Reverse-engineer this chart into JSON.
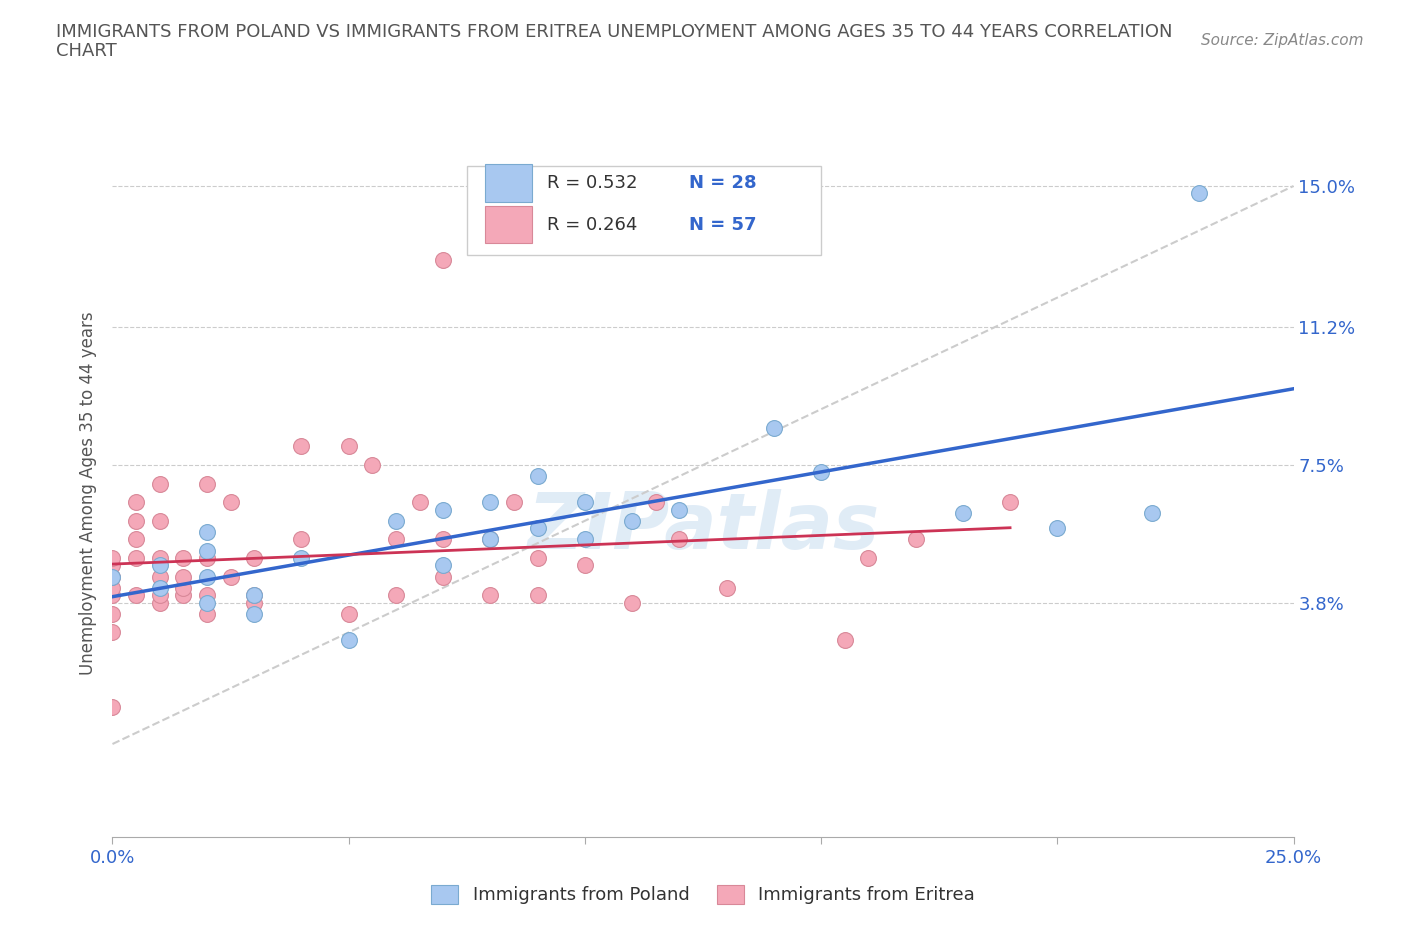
{
  "title_line1": "IMMIGRANTS FROM POLAND VS IMMIGRANTS FROM ERITREA UNEMPLOYMENT AMONG AGES 35 TO 44 YEARS CORRELATION",
  "title_line2": "CHART",
  "source_text": "Source: ZipAtlas.com",
  "ylabel": "Unemployment Among Ages 35 to 44 years",
  "xlim": [
    0.0,
    0.25
  ],
  "ylim": [
    -0.025,
    0.16
  ],
  "ytick_positions": [
    0.038,
    0.075,
    0.112,
    0.15
  ],
  "ytick_labels": [
    "3.8%",
    "7.5%",
    "11.2%",
    "15.0%"
  ],
  "watermark": "ZIPatlas",
  "poland_color": "#a8c8f0",
  "poland_edge": "#7aaad0",
  "eritrea_color": "#f4a8b8",
  "eritrea_edge": "#d88898",
  "poland_line_color": "#3366cc",
  "eritrea_line_color": "#cc3355",
  "diagonal_color": "#cccccc",
  "legend_text_color": "#333333",
  "legend_N_color": "#3366cc",
  "poland_x": [
    0.0,
    0.01,
    0.01,
    0.02,
    0.02,
    0.02,
    0.02,
    0.03,
    0.03,
    0.04,
    0.05,
    0.06,
    0.07,
    0.07,
    0.08,
    0.08,
    0.09,
    0.09,
    0.1,
    0.1,
    0.11,
    0.12,
    0.14,
    0.15,
    0.18,
    0.2,
    0.22,
    0.23
  ],
  "poland_y": [
    0.045,
    0.042,
    0.048,
    0.038,
    0.045,
    0.052,
    0.057,
    0.04,
    0.035,
    0.05,
    0.028,
    0.06,
    0.048,
    0.063,
    0.055,
    0.065,
    0.058,
    0.072,
    0.055,
    0.065,
    0.06,
    0.063,
    0.085,
    0.073,
    0.062,
    0.058,
    0.062,
    0.148
  ],
  "eritrea_x": [
    0.0,
    0.0,
    0.0,
    0.0,
    0.0,
    0.0,
    0.0,
    0.0,
    0.005,
    0.005,
    0.005,
    0.005,
    0.005,
    0.01,
    0.01,
    0.01,
    0.01,
    0.01,
    0.01,
    0.015,
    0.015,
    0.015,
    0.015,
    0.02,
    0.02,
    0.02,
    0.02,
    0.025,
    0.025,
    0.03,
    0.03,
    0.03,
    0.04,
    0.04,
    0.05,
    0.05,
    0.055,
    0.06,
    0.06,
    0.065,
    0.07,
    0.07,
    0.07,
    0.08,
    0.08,
    0.085,
    0.09,
    0.09,
    0.1,
    0.11,
    0.115,
    0.12,
    0.13,
    0.155,
    0.16,
    0.17,
    0.19
  ],
  "eritrea_y": [
    0.04,
    0.042,
    0.045,
    0.048,
    0.05,
    0.03,
    0.035,
    0.01,
    0.04,
    0.05,
    0.055,
    0.06,
    0.065,
    0.038,
    0.04,
    0.045,
    0.05,
    0.06,
    0.07,
    0.04,
    0.042,
    0.045,
    0.05,
    0.035,
    0.04,
    0.05,
    0.07,
    0.045,
    0.065,
    0.038,
    0.04,
    0.05,
    0.055,
    0.08,
    0.035,
    0.08,
    0.075,
    0.04,
    0.055,
    0.065,
    0.045,
    0.055,
    0.13,
    0.04,
    0.055,
    0.065,
    0.04,
    0.05,
    0.048,
    0.038,
    0.065,
    0.055,
    0.042,
    0.028,
    0.05,
    0.055,
    0.065
  ],
  "bottom_legend_label_poland": "Immigrants from Poland",
  "bottom_legend_label_eritrea": "Immigrants from Eritrea"
}
